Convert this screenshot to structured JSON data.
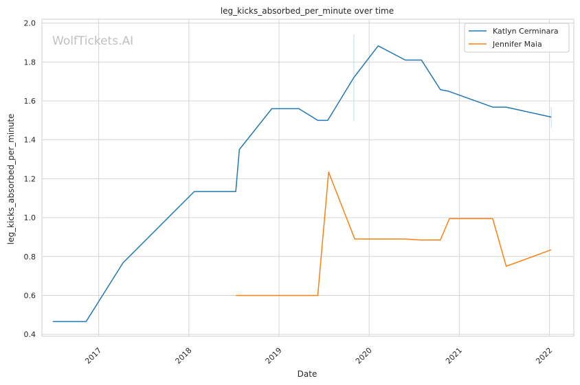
{
  "chart_data": {
    "type": "line",
    "title": "leg_kicks_absorbed_per_minute over time",
    "xlabel": "Date",
    "ylabel": "leg_kicks_absorbed_per_minute",
    "watermark": "WolfTickets.AI",
    "xlim": [
      2016.37,
      2022.27
    ],
    "ylim": [
      0.39,
      2.02
    ],
    "x_ticks": [
      2017,
      2018,
      2019,
      2020,
      2021,
      2022
    ],
    "x_tick_labels": [
      "2017",
      "2018",
      "2019",
      "2020",
      "2021",
      "2022"
    ],
    "y_ticks": [
      0.4,
      0.6,
      0.8,
      1.0,
      1.2,
      1.4,
      1.6,
      1.8,
      2.0
    ],
    "y_tick_labels": [
      "0.4",
      "0.6",
      "0.8",
      "1.0",
      "1.2",
      "1.4",
      "1.6",
      "1.8",
      "2.0"
    ],
    "grid": true,
    "legend_position": "top-right",
    "series": [
      {
        "name": "Katlyn Cerminara",
        "color": "#1f77b4",
        "x": [
          2016.49,
          2016.86,
          2017.27,
          2018.06,
          2018.52,
          2018.56,
          2018.92,
          2019.22,
          2019.43,
          2019.54,
          2019.83,
          2020.1,
          2020.4,
          2020.58,
          2020.79,
          2020.88,
          2021.37,
          2021.52,
          2022.02
        ],
        "y": [
          0.466,
          0.466,
          0.768,
          1.134,
          1.134,
          1.35,
          1.56,
          1.56,
          1.5,
          1.5,
          1.72,
          1.883,
          1.81,
          1.81,
          1.658,
          1.65,
          1.568,
          1.568,
          1.517
        ]
      },
      {
        "name": "Jennifer Maia",
        "color": "#ff7f0e",
        "x": [
          2018.52,
          2019.43,
          2019.55,
          2019.84,
          2020.4,
          2020.57,
          2020.79,
          2020.89,
          2021.37,
          2021.52,
          2022.02
        ],
        "y": [
          0.6,
          0.6,
          1.234,
          0.89,
          0.89,
          0.885,
          0.885,
          0.995,
          0.995,
          0.75,
          0.835
        ]
      }
    ],
    "annotations": [
      {
        "x": 2019.83,
        "y_low": 1.495,
        "y_high": 1.942,
        "color": "#c8dbe8"
      },
      {
        "x": 2022.02,
        "y_low": 1.462,
        "y_high": 1.568,
        "color": "#c8dbe8"
      }
    ]
  }
}
